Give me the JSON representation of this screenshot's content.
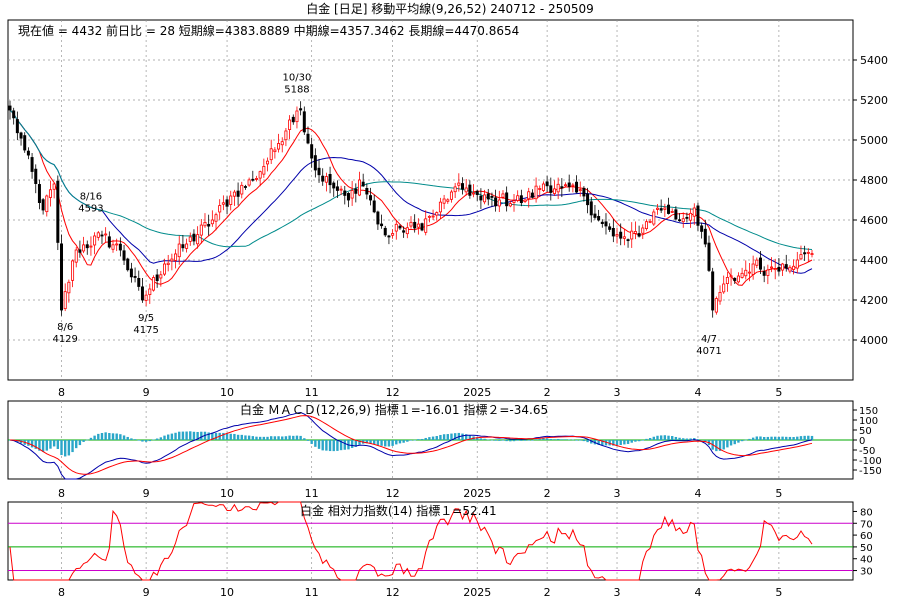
{
  "header": {
    "title": "白金 [日足]  移動平均線(9,26,52)  240712 - 250509",
    "info": "現在値 = 4432   前日比 = 28   短期線=4383.8889   中期線=4357.3462   長期線=4470.8654"
  },
  "colors": {
    "up": "#ff0000",
    "down": "#000000",
    "ma_short": "#ff0000",
    "ma_mid": "#0000aa",
    "ma_long": "#008b8b",
    "grid": "#999999",
    "macd_hist": "#2aa6c8",
    "macd_line": "#0000aa",
    "macd_signal": "#ff0000",
    "rsi_line": "#ff0000",
    "rsi_band": "#cc00cc",
    "rsi_mid": "#00aa00"
  },
  "x_axis": {
    "months": [
      {
        "label": "8",
        "day": 14
      },
      {
        "label": "9",
        "day": 37
      },
      {
        "label": "10",
        "day": 59
      },
      {
        "label": "11",
        "day": 82
      },
      {
        "label": "12",
        "day": 104
      },
      {
        "label": "2025",
        "day": 127
      },
      {
        "label": "2",
        "day": 146
      },
      {
        "label": "3",
        "day": 165
      },
      {
        "label": "4",
        "day": 187
      },
      {
        "label": "5",
        "day": 209
      }
    ],
    "last_day": 218
  },
  "chart_data": [
    {
      "type": "candlestick",
      "name": "price",
      "ylim": [
        3800,
        5600
      ],
      "yticks": [
        4000,
        4200,
        4400,
        4600,
        4800,
        5000,
        5200,
        5400
      ],
      "grid": true,
      "anchors": [
        [
          0,
          5150
        ],
        [
          4,
          4950
        ],
        [
          9,
          4650
        ],
        [
          12,
          4780
        ],
        [
          14,
          4150
        ],
        [
          18,
          4450
        ],
        [
          25,
          4520
        ],
        [
          30,
          4450
        ],
        [
          36,
          4200
        ],
        [
          42,
          4380
        ],
        [
          48,
          4480
        ],
        [
          55,
          4600
        ],
        [
          60,
          4720
        ],
        [
          66,
          4800
        ],
        [
          72,
          4950
        ],
        [
          76,
          5100
        ],
        [
          79,
          5150
        ],
        [
          83,
          4850
        ],
        [
          88,
          4760
        ],
        [
          92,
          4700
        ],
        [
          95,
          4800
        ],
        [
          98,
          4700
        ],
        [
          100,
          4580
        ],
        [
          103,
          4520
        ],
        [
          106,
          4560
        ],
        [
          110,
          4560
        ],
        [
          115,
          4620
        ],
        [
          120,
          4740
        ],
        [
          124,
          4760
        ],
        [
          128,
          4700
        ],
        [
          133,
          4700
        ],
        [
          140,
          4700
        ],
        [
          145,
          4780
        ],
        [
          150,
          4760
        ],
        [
          156,
          4720
        ],
        [
          160,
          4600
        ],
        [
          164,
          4520
        ],
        [
          168,
          4500
        ],
        [
          172,
          4560
        ],
        [
          175,
          4640
        ],
        [
          178,
          4660
        ],
        [
          182,
          4600
        ],
        [
          186,
          4660
        ],
        [
          189,
          4480
        ],
        [
          191,
          4150
        ],
        [
          194,
          4280
        ],
        [
          198,
          4320
        ],
        [
          202,
          4380
        ],
        [
          206,
          4350
        ],
        [
          210,
          4380
        ],
        [
          214,
          4400
        ],
        [
          218,
          4432
        ]
      ],
      "annotations": [
        {
          "label": "10/30",
          "value": "5188",
          "day": 78,
          "price": 5188,
          "position": "above"
        },
        {
          "label": "8/16",
          "value": "4593",
          "day": 22,
          "price": 4593,
          "position": "above"
        },
        {
          "label": "8/6",
          "value": "4129",
          "day": 15,
          "price": 4129,
          "position": "below"
        },
        {
          "label": "9/5",
          "value": "4175",
          "day": 37,
          "price": 4175,
          "position": "below"
        },
        {
          "label": "4/7",
          "value": "4071",
          "day": 190,
          "price": 4071,
          "position": "below"
        }
      ],
      "moving_averages": [
        {
          "period": 9,
          "role": "short",
          "value": 4383.8889
        },
        {
          "period": 26,
          "role": "mid",
          "value": 4357.3462
        },
        {
          "period": 52,
          "role": "long",
          "value": 4470.8654
        }
      ]
    },
    {
      "type": "macd",
      "legend": "白金     ＭＡＣＤ(12,26,9)  指標１=-16.01   指標２=-34.65",
      "params": [
        12,
        26,
        9
      ],
      "indicator1": -16.01,
      "indicator2": -34.65,
      "ylim": [
        -195,
        195
      ],
      "yticks": [
        150,
        100,
        50,
        0,
        -50,
        -100,
        -150
      ],
      "zero_line": 0
    },
    {
      "type": "rsi",
      "legend": "白金     相対力指数(14)  指標１=52.41",
      "period": 14,
      "indicator1": 52.41,
      "ylim": [
        22,
        88
      ],
      "yticks": [
        80,
        70,
        60,
        50,
        40,
        30
      ],
      "bands": [
        30,
        70
      ],
      "mid_line": 50
    }
  ]
}
